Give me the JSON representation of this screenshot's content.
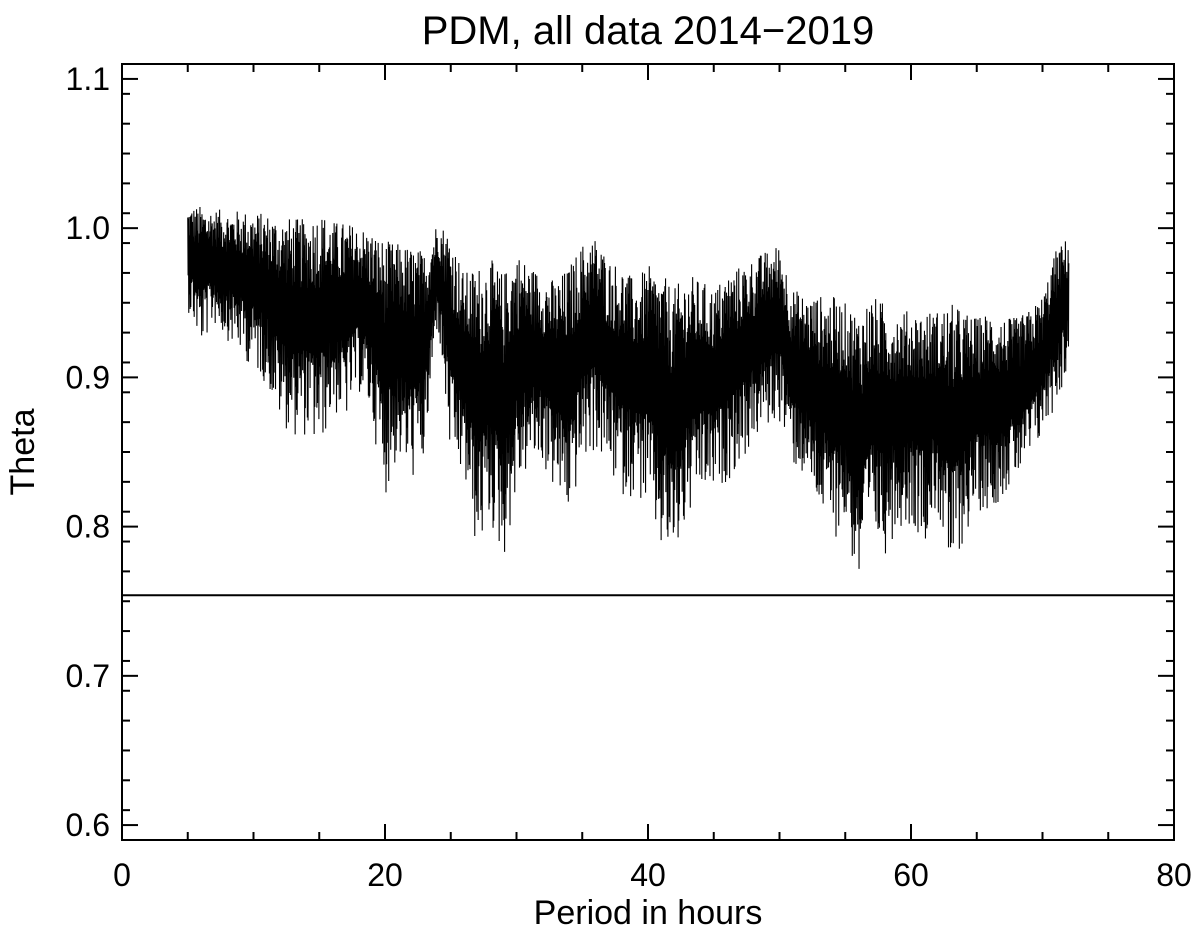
{
  "chart_data": {
    "type": "line",
    "title": "PDM, all data 2014−2019",
    "xlabel": "Period in hours",
    "ylabel": "Theta",
    "xlim": [
      0,
      80
    ],
    "ylim": [
      0.59,
      1.11
    ],
    "x_ticks": [
      0,
      20,
      40,
      60,
      80
    ],
    "x_tick_labels": [
      "0",
      "20",
      "40",
      "60",
      "80"
    ],
    "y_ticks": [
      0.6,
      0.7,
      0.8,
      0.9,
      1.0,
      1.1
    ],
    "y_tick_labels": [
      "0.6",
      "0.7",
      "0.8",
      "0.9",
      "1.0",
      "1.1"
    ],
    "grid": false,
    "line_color": "#000000",
    "series": [
      {
        "x": [
          5,
          6,
          7,
          8,
          9,
          10,
          11,
          12,
          13,
          14,
          15,
          16,
          17,
          18,
          19,
          20,
          21,
          22,
          23,
          24,
          25,
          26,
          27,
          28,
          29,
          30,
          31,
          32,
          33,
          34,
          35,
          36,
          37,
          38,
          39,
          40,
          41,
          42,
          43,
          44,
          45,
          46,
          47,
          48,
          49,
          50,
          51,
          52,
          53,
          54,
          55,
          56,
          57,
          58,
          59,
          60,
          61,
          62,
          63,
          64,
          65,
          66,
          67,
          68,
          69,
          70,
          71,
          72
        ],
        "upper": [
          1.015,
          1.015,
          1.013,
          1.012,
          1.012,
          1.011,
          1.01,
          1.008,
          1.007,
          1.006,
          1.012,
          1.005,
          1.004,
          1.002,
          0.998,
          0.992,
          0.99,
          0.988,
          0.985,
          1.005,
          0.998,
          0.97,
          0.975,
          0.98,
          0.97,
          0.985,
          0.975,
          0.97,
          0.965,
          0.975,
          0.99,
          0.995,
          0.98,
          0.975,
          0.965,
          0.975,
          0.97,
          0.96,
          0.97,
          0.965,
          0.96,
          0.97,
          0.975,
          0.98,
          0.985,
          0.99,
          0.96,
          0.955,
          0.955,
          0.955,
          0.95,
          0.945,
          0.955,
          0.95,
          0.945,
          0.945,
          0.945,
          0.945,
          0.95,
          0.945,
          0.94,
          0.945,
          0.94,
          0.94,
          0.945,
          0.955,
          0.985,
          0.995
        ],
        "lower": [
          0.945,
          0.92,
          0.935,
          0.925,
          0.915,
          0.905,
          0.895,
          0.87,
          0.86,
          0.86,
          0.85,
          0.875,
          0.87,
          0.89,
          0.87,
          0.82,
          0.845,
          0.83,
          0.84,
          0.935,
          0.84,
          0.83,
          0.78,
          0.8,
          0.775,
          0.82,
          0.84,
          0.84,
          0.82,
          0.805,
          0.84,
          0.85,
          0.835,
          0.82,
          0.82,
          0.81,
          0.78,
          0.775,
          0.8,
          0.82,
          0.82,
          0.83,
          0.84,
          0.855,
          0.865,
          0.87,
          0.84,
          0.83,
          0.81,
          0.79,
          0.8,
          0.755,
          0.79,
          0.78,
          0.8,
          0.8,
          0.79,
          0.81,
          0.76,
          0.79,
          0.81,
          0.81,
          0.82,
          0.83,
          0.84,
          0.86,
          0.88,
          0.905
        ]
      }
    ],
    "reference_line": 0.754
  }
}
